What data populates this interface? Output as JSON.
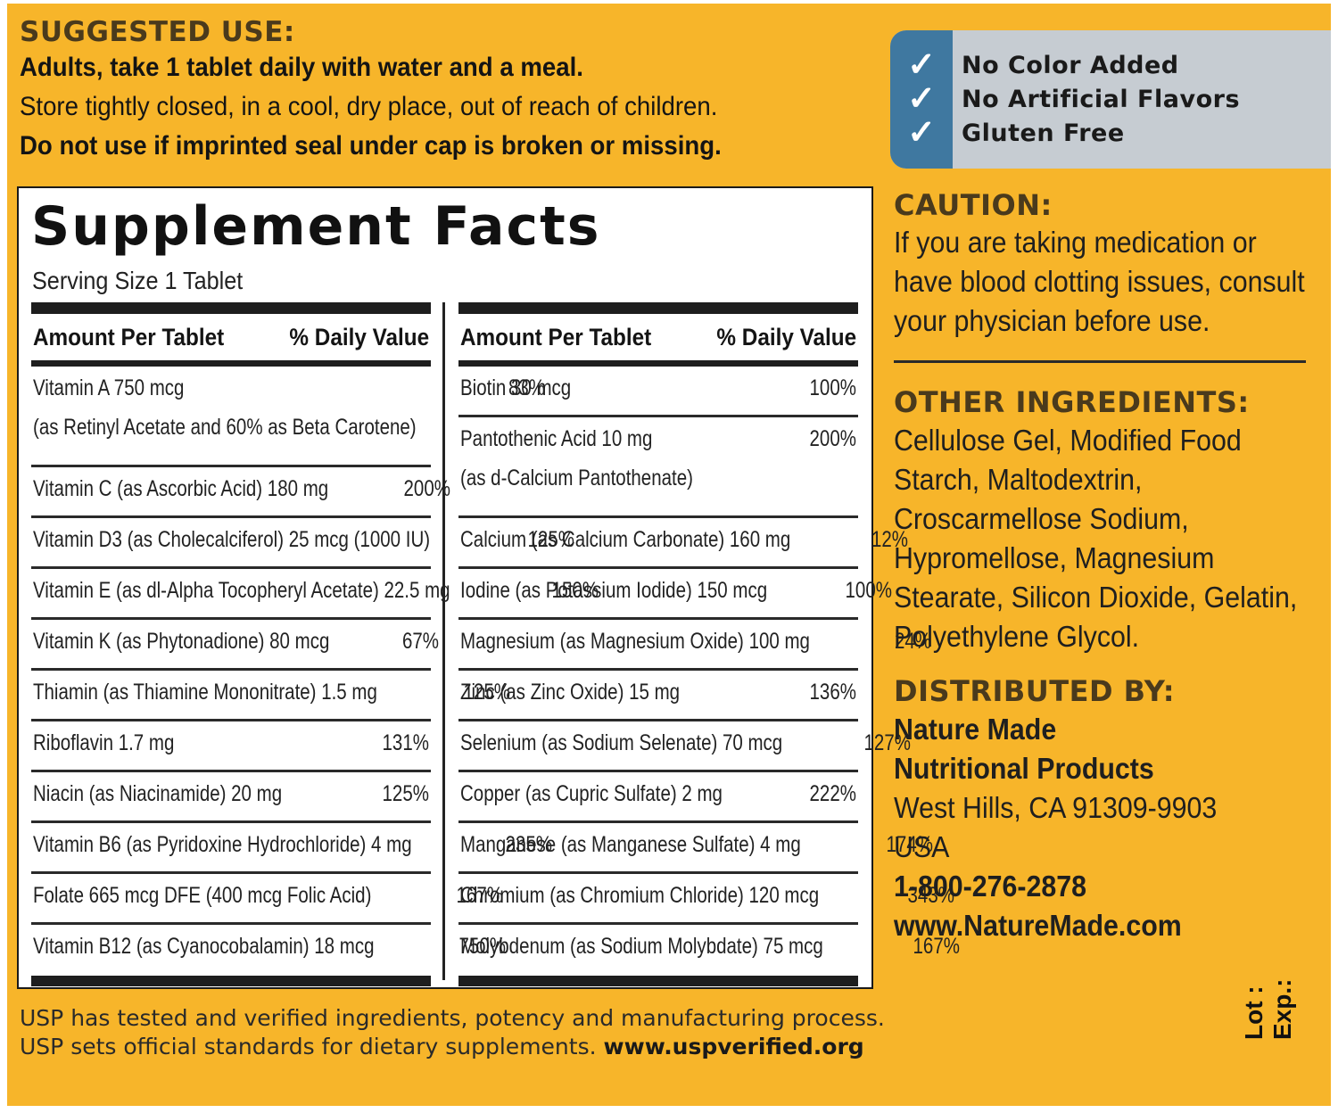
{
  "suggested_use": {
    "heading": "SUGGESTED USE:",
    "lines": [
      "Adults, take 1 tablet daily with water and a meal.",
      "Store tightly closed, in a cool, dry place, out of reach of children.",
      "Do not use if imprinted seal under cap is broken or missing."
    ]
  },
  "badge": {
    "items": [
      "No Color Added",
      "No Artificial Flavors",
      "Gluten Free"
    ],
    "check_glyph": "✓",
    "stripe_color": "#3f78a0",
    "panel_color": "#c6ccd2"
  },
  "facts": {
    "title": "Supplement Facts",
    "serving_size": "Serving Size 1 Tablet",
    "header_amount": "Amount Per Tablet",
    "header_dv": "% Daily Value",
    "left": [
      {
        "name": "Vitamin A 750 mcg",
        "sub": "(as Retinyl Acetate and 60% as Beta Carotene)",
        "dv": "83%"
      },
      {
        "name": "Vitamin C (as Ascorbic Acid) 180 mg",
        "dv": "200%"
      },
      {
        "name": "Vitamin D3 (as Cholecalciferol) 25 mcg (1000 IU)",
        "dv": "125%"
      },
      {
        "name": "Vitamin E (as dl-Alpha Tocopheryl Acetate) 22.5 mg",
        "dv": "150%"
      },
      {
        "name": "Vitamin K (as Phytonadione) 80 mcg",
        "dv": "67%"
      },
      {
        "name": "Thiamin (as Thiamine Mononitrate) 1.5 mg",
        "dv": "125%"
      },
      {
        "name": "Riboflavin 1.7 mg",
        "dv": "131%"
      },
      {
        "name": "Niacin (as Niacinamide) 20 mg",
        "dv": "125%"
      },
      {
        "name": "Vitamin B6 (as Pyridoxine Hydrochloride) 4 mg",
        "dv": "235%"
      },
      {
        "name": "Folate 665 mcg DFE (400 mcg Folic Acid)",
        "dv": "167%"
      },
      {
        "name": "Vitamin B12 (as Cyanocobalamin) 18 mcg",
        "dv": "750%"
      }
    ],
    "right": [
      {
        "name": "Biotin 30 mcg",
        "dv": "100%"
      },
      {
        "name": "Pantothenic Acid 10 mg",
        "sub": "(as d-Calcium Pantothenate)",
        "dv": "200%"
      },
      {
        "name": "Calcium (as Calcium Carbonate) 160 mg",
        "dv": "12%"
      },
      {
        "name": "Iodine (as Potassium Iodide) 150 mcg",
        "dv": "100%"
      },
      {
        "name": "Magnesium (as Magnesium Oxide) 100 mg",
        "dv": "24%"
      },
      {
        "name": "Zinc (as Zinc Oxide) 15 mg",
        "dv": "136%"
      },
      {
        "name": "Selenium (as Sodium Selenate) 70 mcg",
        "dv": "127%"
      },
      {
        "name": "Copper (as Cupric Sulfate) 2 mg",
        "dv": "222%"
      },
      {
        "name": "Manganese (as Manganese Sulfate) 4 mg",
        "dv": "174%"
      },
      {
        "name": "Chromium (as Chromium Chloride) 120 mcg",
        "dv": "343%"
      },
      {
        "name": "Molybdenum (as Sodium Molybdate) 75 mcg",
        "dv": "167%"
      }
    ]
  },
  "caution": {
    "heading": "CAUTION:",
    "lines": [
      "If you are taking medication or",
      "have blood clotting issues, consult",
      "your physician before use."
    ]
  },
  "other_ingredients": {
    "heading": "OTHER INGREDIENTS:",
    "lines": [
      "Cellulose Gel, Modified Food",
      "Starch, Maltodextrin,",
      "Croscarmellose Sodium,",
      "Hypromellose, Magnesium",
      "Stearate, Silicon Dioxide, Gelatin,",
      "Polyethylene Glycol."
    ]
  },
  "distributed_by": {
    "heading": "DISTRIBUTED BY:",
    "company_line1": "Nature Made",
    "company_line2": "Nutritional Products",
    "address_line1": "West Hills, CA 91309-9903",
    "address_line2": "USA",
    "phone": "1-800-276-2878",
    "website": "www.NatureMade.com"
  },
  "usp": {
    "line1": "USP has tested and verified ingredients, potency and manufacturing process.",
    "line2_prefix": "USP sets official standards for dietary supplements.",
    "line2_link": "www.uspverified.org"
  },
  "lot_label": "Lot :",
  "exp_label": "Exp.:",
  "colors": {
    "background": "#f7b52a",
    "heading": "#4a3a1c",
    "text": "#141414"
  }
}
